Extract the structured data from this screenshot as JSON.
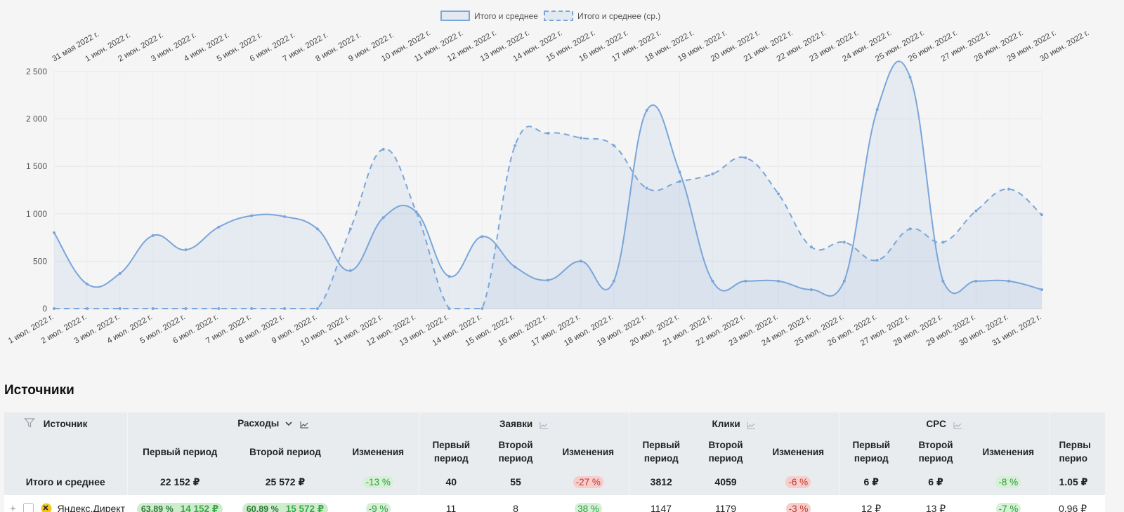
{
  "chart_data": {
    "type": "line",
    "legend": [
      "Итого и среднее",
      "Итого и среднее (ср.)"
    ],
    "legend_position": "top",
    "ylim": [
      0,
      2500
    ],
    "yticks": [
      "0",
      "500",
      "1 000",
      "1 500",
      "2 000",
      "2 500"
    ],
    "top_axis_labels": [
      "31 мая 2022 г.",
      "1 июн. 2022 г.",
      "2 июн. 2022 г.",
      "3 июн. 2022 г.",
      "4 июн. 2022 г.",
      "5 июн. 2022 г.",
      "6 июн. 2022 г.",
      "7 июн. 2022 г.",
      "8 июн. 2022 г.",
      "9 июн. 2022 г.",
      "10 июн. 2022 г.",
      "11 июн. 2022 г.",
      "12 июн. 2022 г.",
      "13 июн. 2022 г.",
      "14 июн. 2022 г.",
      "15 июн. 2022 г.",
      "16 июн. 2022 г.",
      "17 июн. 2022 г.",
      "18 июн. 2022 г.",
      "19 июн. 2022 г.",
      "20 июн. 2022 г.",
      "21 июн. 2022 г.",
      "22 июн. 2022 г.",
      "23 июн. 2022 г.",
      "24 июн. 2022 г.",
      "25 июн. 2022 г.",
      "26 июн. 2022 г.",
      "27 июн. 2022 г.",
      "28 июн. 2022 г.",
      "29 июн. 2022 г.",
      "30 июн. 2022 г."
    ],
    "bottom_axis_labels": [
      "1 июл. 2022 г.",
      "2 июл. 2022 г.",
      "3 июл. 2022 г.",
      "4 июл. 2022 г.",
      "5 июл. 2022 г.",
      "6 июл. 2022 г.",
      "7 июл. 2022 г.",
      "8 июл. 2022 г.",
      "9 июл. 2022 г.",
      "10 июл. 2022 г.",
      "11 июл. 2022 г.",
      "12 июл. 2022 г.",
      "13 июл. 2022 г.",
      "14 июл. 2022 г.",
      "15 июл. 2022 г.",
      "16 июл. 2022 г.",
      "17 июл. 2022 г.",
      "18 июл. 2022 г.",
      "19 июл. 2022 г.",
      "20 июл. 2022 г.",
      "21 июл. 2022 г.",
      "22 июл. 2022 г.",
      "23 июл. 2022 г.",
      "24 июл. 2022 г.",
      "25 июл. 2022 г.",
      "26 июл. 2022 г.",
      "27 июл. 2022 г.",
      "28 июл. 2022 г.",
      "29 июл. 2022 г.",
      "30 июл. 2022 г.",
      "31 июл. 2022 г."
    ],
    "series": [
      {
        "name": "Итого и среднее",
        "style": "solid-area",
        "color": "#7aa6d9",
        "values": [
          800,
          260,
          370,
          770,
          620,
          860,
          980,
          970,
          840,
          400,
          960,
          1020,
          340,
          760,
          440,
          300,
          500,
          290,
          2090,
          1440,
          290,
          290,
          290,
          200,
          290,
          2100,
          2440,
          290,
          290,
          290,
          200
        ]
      },
      {
        "name": "Итого и среднее (ср.)",
        "style": "dashed-area",
        "color": "#7aa6d9",
        "values": [
          0,
          0,
          0,
          0,
          0,
          0,
          0,
          0,
          0,
          840,
          1680,
          1020,
          0,
          0,
          1720,
          1850,
          1800,
          1720,
          1270,
          1340,
          1420,
          1590,
          1210,
          650,
          700,
          510,
          840,
          700,
          1030,
          1260,
          990
        ]
      }
    ]
  },
  "sources_section": {
    "title": "Источники",
    "columns": {
      "source": "Источник",
      "expenses": "Расходы",
      "leads": "Заявки",
      "clicks": "Клики",
      "cpc": "CPC"
    },
    "sub": {
      "first": "Первый период",
      "second": "Второй период",
      "change": "Изменения",
      "first_cut": "Первы перио"
    },
    "totals": {
      "label": "Итого и среднее",
      "exp_first": "22 152 ₽",
      "exp_second": "25 572 ₽",
      "exp_change": "-13 %",
      "leads_first": "40",
      "leads_second": "55",
      "leads_change": "-27 %",
      "clicks_first": "3812",
      "clicks_second": "4059",
      "clicks_change": "-6 %",
      "cpc_first": "6 ₽",
      "cpc_second": "6 ₽",
      "cpc_change": "-8 %",
      "extra": "1.05 ₽"
    },
    "rows": [
      {
        "expand": "+",
        "label": "Яндекс.Директ",
        "exp_first_share": "63.89 %",
        "exp_first": "14 152 ₽",
        "exp_second_share": "60.89 %",
        "exp_second": "15 572 ₽",
        "exp_change": "-9 %",
        "leads_first": "11",
        "leads_second": "8",
        "leads_change": "38 %",
        "clicks_first": "1147",
        "clicks_second": "1179",
        "clicks_change": "-3 %",
        "cpc_first": "12 ₽",
        "cpc_second": "13 ₽",
        "cpc_change": "-7 %",
        "extra": "0.96 ₽"
      }
    ]
  }
}
